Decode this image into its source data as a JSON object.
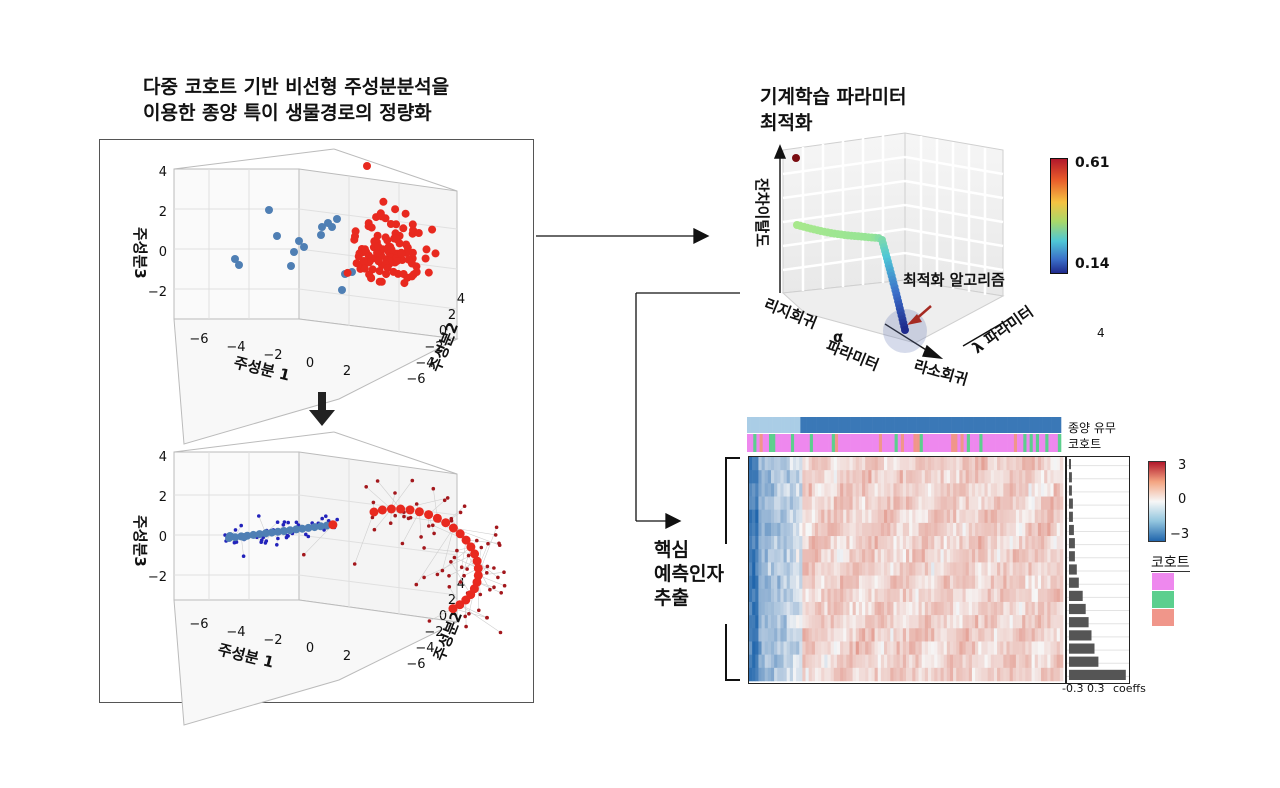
{
  "left": {
    "title_line1": "다중 코호트 기반 비선형 주성분분석을",
    "title_line2": "이용한 종양 특이 생물경로의 정량화",
    "pc1_label": "주성분 1",
    "pc2_label": "주성분2",
    "pc3_label": "주성분3",
    "z_ticks": [
      "4",
      "2",
      "0",
      "−2"
    ],
    "x_ticks": [
      "−6",
      "−4",
      "−2",
      "0",
      "2"
    ],
    "y_ticks": [
      "4",
      "2",
      "0",
      "−2",
      "−4",
      "−6"
    ],
    "colors": {
      "tumor": "#e8291f",
      "normal": "#4f7fb4",
      "tumor_small": "#a3171c",
      "normal_small": "#2222bb"
    }
  },
  "optimization": {
    "title_line1": "기계학습 파라미터",
    "title_line2": "최적화",
    "y_axis_label": "잔차이탈도",
    "left_axis_label": "리지회귀",
    "alpha_symbol": "α",
    "alpha_param_label": "파라미터",
    "right_axis_label": "라소회귀",
    "lambda_label": "λ 파라미터",
    "algo_label": "최적화 알고리즘",
    "colorbar_max": "0.61",
    "colorbar_min": "0.14",
    "stray_label": "4"
  },
  "heatmap": {
    "row_label_tumor": "종양 유무",
    "row_label_cohort": "코호트",
    "scale_ticks": [
      "3",
      "0",
      "−3"
    ],
    "legend_title": "코호트",
    "cohort_colors": [
      "#ee88ee",
      "#5ccf8e",
      "#f0968a"
    ],
    "coef_axis_label": "-0.3 0.3",
    "coef_label": "coeffs",
    "side_label_line1": "핵심",
    "side_label_line2": "예측인자",
    "side_label_line3": "추출"
  }
}
